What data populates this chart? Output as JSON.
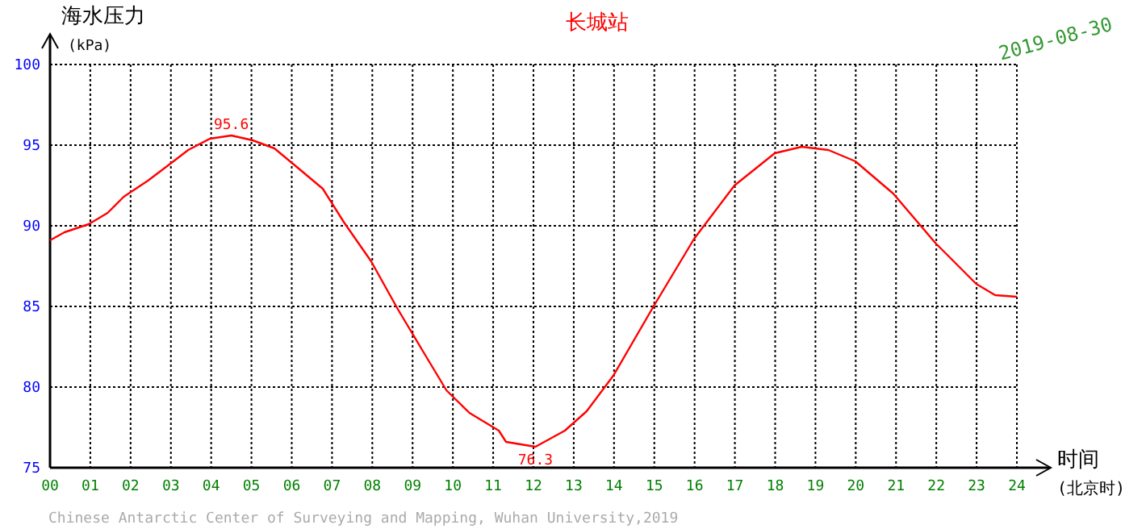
{
  "chart_data": {
    "type": "line",
    "title": "长城站",
    "subtitle": "2019-08-30",
    "ylabel": "海水压力",
    "xlabel": "时间",
    "annotations": [
      "(kPa)",
      "(北京时)",
      "Chinese Antarctic Center of Surveying and Mapping, Wuhan University,2019",
      {
        "text": "95.6",
        "x": 4.5,
        "y": 95.6
      },
      {
        "text": "76.3",
        "x": 12.05,
        "y": 76.3
      }
    ],
    "series": [
      {
        "color": "#ff0000",
        "x": [
          0,
          0.36,
          0.96,
          1.43,
          1.83,
          2.43,
          2.96,
          3.43,
          3.97,
          4.5,
          5.03,
          5.57,
          6.1,
          6.77,
          7.3,
          7.97,
          8.64,
          9.31,
          9.84,
          10.41,
          11.14,
          11.32,
          12.05,
          12.78,
          13.32,
          13.98,
          14.98,
          15.99,
          16.99,
          17.99,
          18.66,
          19.32,
          19.99,
          20.93,
          21.99,
          22.99,
          23.46,
          24.0
        ],
        "values": [
          89.1,
          89.6,
          90.1,
          90.8,
          91.8,
          92.8,
          93.8,
          94.7,
          95.4,
          95.6,
          95.3,
          94.8,
          93.7,
          92.3,
          90.2,
          87.8,
          84.8,
          82.0,
          79.8,
          78.4,
          77.3,
          76.6,
          76.3,
          77.3,
          78.5,
          80.7,
          85.0,
          89.2,
          92.5,
          94.5,
          94.9,
          94.7,
          94.0,
          92.0,
          88.9,
          86.4,
          85.7,
          85.6
        ]
      }
    ],
    "xlim": [
      0,
      24
    ],
    "ylim": [
      75,
      100
    ],
    "xticks": [
      {
        "value": 0,
        "label": "00"
      },
      {
        "value": 1,
        "label": "01"
      },
      {
        "value": 2,
        "label": "02"
      },
      {
        "value": 3,
        "label": "03"
      },
      {
        "value": 4,
        "label": "04"
      },
      {
        "value": 5,
        "label": "05"
      },
      {
        "value": 6,
        "label": "06"
      },
      {
        "value": 7,
        "label": "07"
      },
      {
        "value": 8,
        "label": "08"
      },
      {
        "value": 9,
        "label": "09"
      },
      {
        "value": 10,
        "label": "10"
      },
      {
        "value": 11,
        "label": "11"
      },
      {
        "value": 12,
        "label": "12"
      },
      {
        "value": 13,
        "label": "13"
      },
      {
        "value": 14,
        "label": "14"
      },
      {
        "value": 15,
        "label": "15"
      },
      {
        "value": 16,
        "label": "16"
      },
      {
        "value": 17,
        "label": "17"
      },
      {
        "value": 18,
        "label": "18"
      },
      {
        "value": 19,
        "label": "19"
      },
      {
        "value": 20,
        "label": "20"
      },
      {
        "value": 21,
        "label": "21"
      },
      {
        "value": 22,
        "label": "22"
      },
      {
        "value": 23,
        "label": "23"
      },
      {
        "value": 24,
        "label": "24"
      }
    ],
    "yticks": [
      75,
      80,
      85,
      90,
      95,
      100
    ],
    "grid": true,
    "marker": "none",
    "line_style": "solid"
  }
}
